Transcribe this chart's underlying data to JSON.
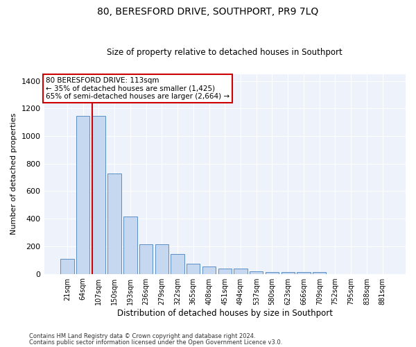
{
  "title": "80, BERESFORD DRIVE, SOUTHPORT, PR9 7LQ",
  "subtitle": "Size of property relative to detached houses in Southport",
  "xlabel": "Distribution of detached houses by size in Southport",
  "ylabel": "Number of detached properties",
  "categories": [
    "21sqm",
    "64sqm",
    "107sqm",
    "150sqm",
    "193sqm",
    "236sqm",
    "279sqm",
    "322sqm",
    "365sqm",
    "408sqm",
    "451sqm",
    "494sqm",
    "537sqm",
    "580sqm",
    "623sqm",
    "666sqm",
    "709sqm",
    "752sqm",
    "795sqm",
    "838sqm",
    "881sqm"
  ],
  "values": [
    110,
    1145,
    1145,
    730,
    415,
    215,
    215,
    145,
    75,
    55,
    38,
    38,
    20,
    15,
    15,
    15,
    12,
    0,
    0,
    0,
    0
  ],
  "bar_color": "#c5d8f0",
  "bar_edge_color": "#5b8ec4",
  "bg_color": "#eef2fb",
  "grid_color": "#ffffff",
  "red_line_index": 2,
  "red_line_color": "#cc0000",
  "annotation_box_text": "80 BERESFORD DRIVE: 113sqm\n← 35% of detached houses are smaller (1,425)\n65% of semi-detached houses are larger (2,664) →",
  "annotation_box_color": "#cc0000",
  "ylim": [
    0,
    1450
  ],
  "yticks": [
    0,
    200,
    400,
    600,
    800,
    1000,
    1200,
    1400
  ],
  "fig_width": 6.0,
  "fig_height": 5.0,
  "dpi": 100,
  "footer_line1": "Contains HM Land Registry data © Crown copyright and database right 2024.",
  "footer_line2": "Contains public sector information licensed under the Open Government Licence v3.0."
}
